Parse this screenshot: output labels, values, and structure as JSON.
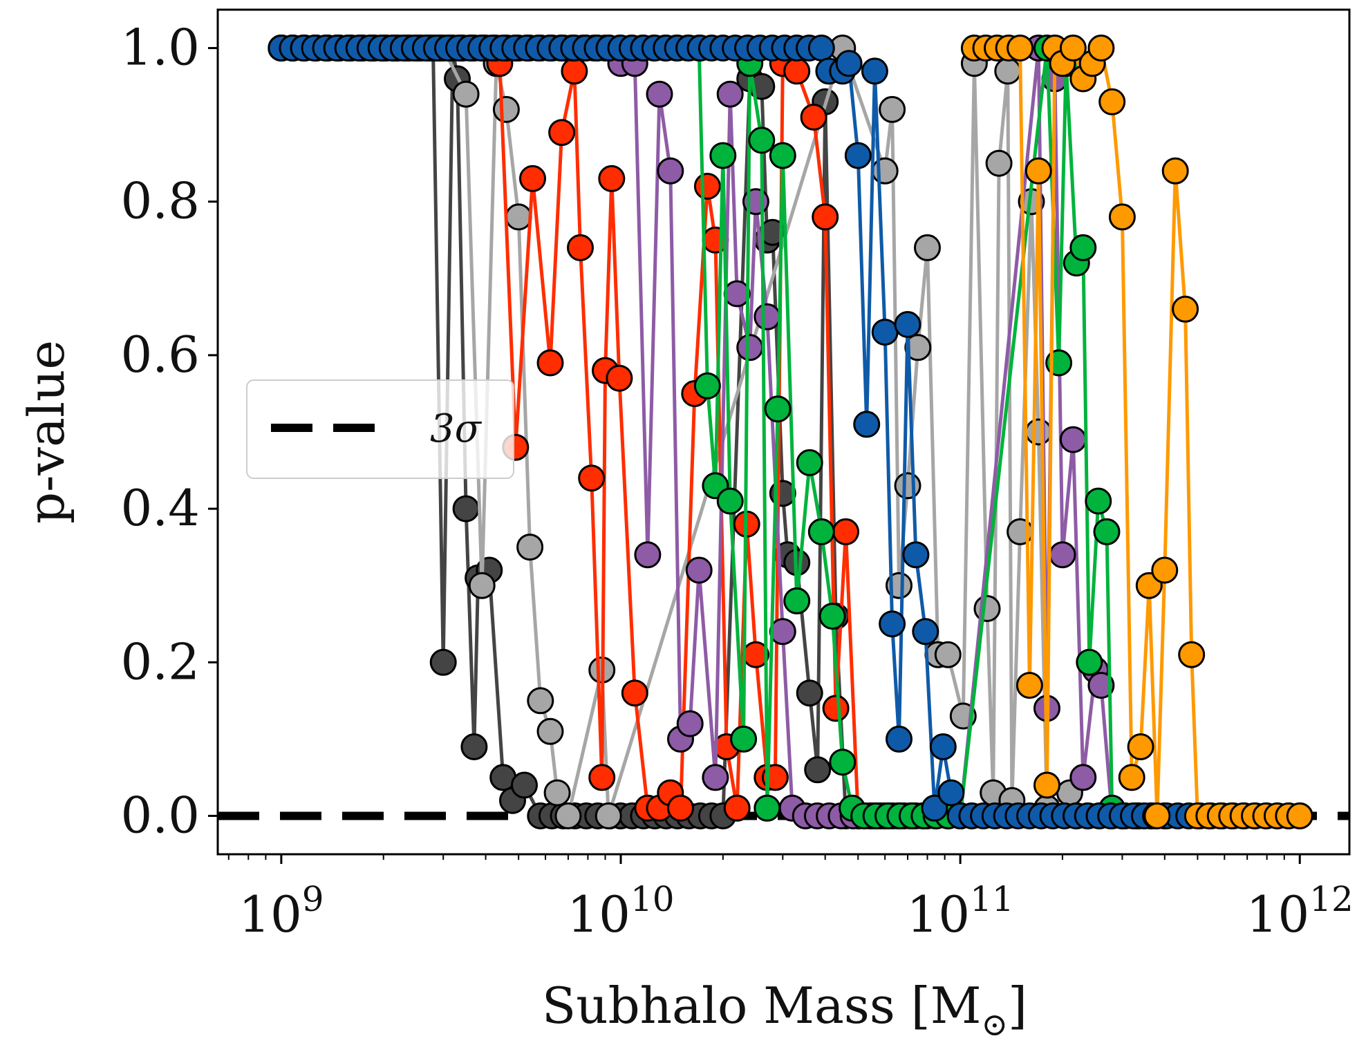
{
  "chart_data": {
    "type": "line",
    "xlabel": "Subhalo Mass [M",
    "xlabel_sub": "⊙",
    "xlabel_close": "]",
    "ylabel": "p-value",
    "x_scale": "log",
    "xlim": [
      650000000.0,
      1400000000000.0
    ],
    "ylim": [
      -0.05,
      1.05
    ],
    "x_ticks": [
      {
        "value": 1000000000.0,
        "base": "10",
        "exp": "9"
      },
      {
        "value": 10000000000.0,
        "base": "10",
        "exp": "10"
      },
      {
        "value": 100000000000.0,
        "base": "10",
        "exp": "11"
      },
      {
        "value": 1000000000000.0,
        "base": "10",
        "exp": "12"
      }
    ],
    "y_ticks": [
      {
        "value": 0.0,
        "label": "0.0"
      },
      {
        "value": 0.2,
        "label": "0.2"
      },
      {
        "value": 0.4,
        "label": "0.4"
      },
      {
        "value": 0.6,
        "label": "0.6"
      },
      {
        "value": 0.8,
        "label": "0.8"
      },
      {
        "value": 1.0,
        "label": "1.0"
      }
    ],
    "grid": false,
    "legend": {
      "position": "center-left",
      "entries": [
        {
          "label": "3σ",
          "style": "dashed",
          "color": "#000000"
        }
      ]
    },
    "threshold_line": {
      "y": 0.0,
      "color": "#000000",
      "style": "dashed"
    },
    "series": [
      {
        "color": "#444444",
        "points": [
          [
            1000000000.0,
            1.0
          ],
          [
            2800000000.0,
            1.0
          ],
          [
            3000000000.0,
            0.2
          ],
          [
            3200000000.0,
            1.0
          ],
          [
            3300000000.0,
            0.96
          ],
          [
            3500000000.0,
            0.4
          ],
          [
            3700000000.0,
            0.09
          ],
          [
            3800000000.0,
            0.31
          ],
          [
            4100000000.0,
            0.32
          ],
          [
            4500000000.0,
            0.05
          ],
          [
            4800000000.0,
            0.02
          ],
          [
            5200000000.0,
            0.04
          ],
          [
            5800000000.0,
            0.0
          ],
          [
            10000000000.0,
            0.0
          ],
          [
            20000000000.0,
            0.0
          ],
          [
            24000000000.0,
            0.96
          ],
          [
            26000000000.0,
            0.95
          ],
          [
            27000000000.0,
            0.75
          ],
          [
            28000000000.0,
            0.76
          ],
          [
            30000000000.0,
            0.42
          ],
          [
            31000000000.0,
            0.34
          ],
          [
            33000000000.0,
            0.33
          ],
          [
            36000000000.0,
            0.16
          ],
          [
            38000000000.0,
            0.06
          ],
          [
            40000000000.0,
            0.93
          ],
          [
            43000000000.0,
            0.26
          ],
          [
            46000000000.0,
            0.0
          ],
          [
            60000000000.0,
            0.0
          ],
          [
            100000000000.0,
            0.0
          ]
        ]
      },
      {
        "color": "#a6a6a6",
        "points": [
          [
            1000000000.0,
            1.0
          ],
          [
            3000000000.0,
            1.0
          ],
          [
            3500000000.0,
            0.94
          ],
          [
            3900000000.0,
            0.3
          ],
          [
            4300000000.0,
            0.98
          ],
          [
            4600000000.0,
            0.92
          ],
          [
            5000000000.0,
            0.78
          ],
          [
            5400000000.0,
            0.35
          ],
          [
            5800000000.0,
            0.15
          ],
          [
            6200000000.0,
            0.11
          ],
          [
            6500000000.0,
            0.03
          ],
          [
            7000000000.0,
            0.0
          ],
          [
            8800000000.0,
            0.19
          ],
          [
            9200000000.0,
            0.0
          ],
          [
            45000000000.0,
            1.0
          ],
          [
            60000000000.0,
            0.84
          ],
          [
            63000000000.0,
            0.92
          ],
          [
            66000000000.0,
            0.3
          ],
          [
            70000000000.0,
            0.43
          ],
          [
            75000000000.0,
            0.61
          ],
          [
            80000000000.0,
            0.74
          ],
          [
            86000000000.0,
            0.21
          ],
          [
            92000000000.0,
            0.21
          ],
          [
            102000000000.0,
            0.13
          ],
          [
            110000000000.0,
            0.98
          ],
          [
            120000000000.0,
            0.27
          ],
          [
            125000000000.0,
            0.03
          ],
          [
            130000000000.0,
            0.85
          ],
          [
            138000000000.0,
            0.97
          ],
          [
            142000000000.0,
            0.02
          ],
          [
            150000000000.0,
            0.37
          ],
          [
            162000000000.0,
            0.8
          ],
          [
            170000000000.0,
            0.5
          ],
          [
            180000000000.0,
            0.01
          ],
          [
            210000000000.0,
            0.03
          ],
          [
            220000000000.0,
            0.0
          ],
          [
            300000000000.0,
            0.0
          ]
        ]
      },
      {
        "color": "#ff2d00",
        "points": [
          [
            1000000000.0,
            1.0
          ],
          [
            4000000000.0,
            1.0
          ],
          [
            4400000000.0,
            0.98
          ],
          [
            4900000000.0,
            0.48
          ],
          [
            5500000000.0,
            0.83
          ],
          [
            6200000000.0,
            0.59
          ],
          [
            6700000000.0,
            0.89
          ],
          [
            7300000000.0,
            0.97
          ],
          [
            7600000000.0,
            0.74
          ],
          [
            8200000000.0,
            0.44
          ],
          [
            8800000000.0,
            0.05
          ],
          [
            9000000000.0,
            0.58
          ],
          [
            9400000000.0,
            0.83
          ],
          [
            9900000000.0,
            0.57
          ],
          [
            11000000000.0,
            0.16
          ],
          [
            12000000000.0,
            0.01
          ],
          [
            13000000000.0,
            0.01
          ],
          [
            14000000000.0,
            0.03
          ],
          [
            15000000000.0,
            0.01
          ],
          [
            16500000000.0,
            0.55
          ],
          [
            18000000000.0,
            0.82
          ],
          [
            19000000000.0,
            0.75
          ],
          [
            20500000000.0,
            0.09
          ],
          [
            22000000000.0,
            0.01
          ],
          [
            23500000000.0,
            0.38
          ],
          [
            25000000000.0,
            0.21
          ],
          [
            27000000000.0,
            0.05
          ],
          [
            28500000000.0,
            0.05
          ],
          [
            30000000000.0,
            0.98
          ],
          [
            33000000000.0,
            0.97
          ],
          [
            37000000000.0,
            0.91
          ],
          [
            40000000000.0,
            0.78
          ],
          [
            43000000000.0,
            0.14
          ],
          [
            46000000000.0,
            0.37
          ],
          [
            50000000000.0,
            0.0
          ],
          [
            80000000000.0,
            0.0
          ]
        ]
      },
      {
        "color": "#8e5ba6",
        "points": [
          [
            1000000000.0,
            1.0
          ],
          [
            9000000000.0,
            1.0
          ],
          [
            10000000000.0,
            0.98
          ],
          [
            11000000000.0,
            0.98
          ],
          [
            12000000000.0,
            0.34
          ],
          [
            13000000000.0,
            0.94
          ],
          [
            14000000000.0,
            0.84
          ],
          [
            15000000000.0,
            0.1
          ],
          [
            16000000000.0,
            0.12
          ],
          [
            17000000000.0,
            0.32
          ],
          [
            19000000000.0,
            0.05
          ],
          [
            21000000000.0,
            0.94
          ],
          [
            22000000000.0,
            0.68
          ],
          [
            24000000000.0,
            0.61
          ],
          [
            25000000000.0,
            0.8
          ],
          [
            27000000000.0,
            0.65
          ],
          [
            30000000000.0,
            0.24
          ],
          [
            32000000000.0,
            0.01
          ],
          [
            35000000000.0,
            0.0
          ],
          [
            100000000000.0,
            0.0
          ],
          [
            170000000000.0,
            1.0
          ],
          [
            180000000000.0,
            0.14
          ],
          [
            190000000000.0,
            0.96
          ],
          [
            200000000000.0,
            0.34
          ],
          [
            215000000000.0,
            0.49
          ],
          [
            230000000000.0,
            0.05
          ],
          [
            250000000000.0,
            0.19
          ],
          [
            260000000000.0,
            0.17
          ],
          [
            280000000000.0,
            0.0
          ],
          [
            400000000000.0,
            0.0
          ]
        ]
      },
      {
        "color": "#00b33c",
        "points": [
          [
            1000000000.0,
            1.0
          ],
          [
            17000000000.0,
            1.0
          ],
          [
            18000000000.0,
            0.56
          ],
          [
            19000000000.0,
            0.43
          ],
          [
            20000000000.0,
            0.86
          ],
          [
            21000000000.0,
            0.41
          ],
          [
            23000000000.0,
            0.1
          ],
          [
            24000000000.0,
            0.98
          ],
          [
            26000000000.0,
            0.88
          ],
          [
            27000000000.0,
            0.01
          ],
          [
            29000000000.0,
            0.53
          ],
          [
            30000000000.0,
            0.86
          ],
          [
            33000000000.0,
            0.28
          ],
          [
            36000000000.0,
            0.46
          ],
          [
            39000000000.0,
            0.37
          ],
          [
            42000000000.0,
            0.26
          ],
          [
            45000000000.0,
            0.07
          ],
          [
            48000000000.0,
            0.01
          ],
          [
            52000000000.0,
            0.0
          ],
          [
            100000000000.0,
            0.0
          ],
          [
            180000000000.0,
            1.0
          ],
          [
            195000000000.0,
            0.59
          ],
          [
            205000000000.0,
            0.98
          ],
          [
            220000000000.0,
            0.72
          ],
          [
            230000000000.0,
            0.74
          ],
          [
            240000000000.0,
            0.2
          ],
          [
            255000000000.0,
            0.41
          ],
          [
            270000000000.0,
            0.37
          ],
          [
            280000000000.0,
            0.01
          ],
          [
            300000000000.0,
            0.0
          ],
          [
            400000000000.0,
            0.0
          ]
        ]
      },
      {
        "color": "#0f5aa8",
        "points": [
          [
            1000000000.0,
            1.0
          ],
          [
            4500000000.0,
            1.0
          ],
          [
            10000000000.0,
            1.0
          ],
          [
            20000000000.0,
            1.0
          ],
          [
            39000000000.0,
            1.0
          ],
          [
            41000000000.0,
            0.97
          ],
          [
            45000000000.0,
            0.97
          ],
          [
            47000000000.0,
            0.98
          ],
          [
            50000000000.0,
            0.86
          ],
          [
            53000000000.0,
            0.51
          ],
          [
            56000000000.0,
            0.97
          ],
          [
            60000000000.0,
            0.63
          ],
          [
            63000000000.0,
            0.25
          ],
          [
            66000000000.0,
            0.1
          ],
          [
            70000000000.0,
            0.64
          ],
          [
            74000000000.0,
            0.34
          ],
          [
            79000000000.0,
            0.24
          ],
          [
            84000000000.0,
            0.01
          ],
          [
            89000000000.0,
            0.09
          ],
          [
            94000000000.0,
            0.03
          ],
          [
            100000000000.0,
            0.0
          ],
          [
            300000000000.0,
            0.0
          ],
          [
            1000000000000.0,
            0.0
          ]
        ]
      },
      {
        "color": "#ff9900",
        "points": [
          [
            110000000000.0,
            1.0
          ],
          [
            150000000000.0,
            1.0
          ],
          [
            160000000000.0,
            0.17
          ],
          [
            170000000000.0,
            0.84
          ],
          [
            180000000000.0,
            0.04
          ],
          [
            190000000000.0,
            1.0
          ],
          [
            200000000000.0,
            0.98
          ],
          [
            215000000000.0,
            1.0
          ],
          [
            230000000000.0,
            0.96
          ],
          [
            245000000000.0,
            0.98
          ],
          [
            260000000000.0,
            1.0
          ],
          [
            280000000000.0,
            0.93
          ],
          [
            300000000000.0,
            0.78
          ],
          [
            320000000000.0,
            0.05
          ],
          [
            340000000000.0,
            0.09
          ],
          [
            360000000000.0,
            0.3
          ],
          [
            380000000000.0,
            0.0
          ],
          [
            400000000000.0,
            0.32
          ],
          [
            430000000000.0,
            0.84
          ],
          [
            460000000000.0,
            0.66
          ],
          [
            480000000000.0,
            0.21
          ],
          [
            500000000000.0,
            0.0
          ],
          [
            1000000000000.0,
            0.0
          ]
        ]
      }
    ]
  }
}
